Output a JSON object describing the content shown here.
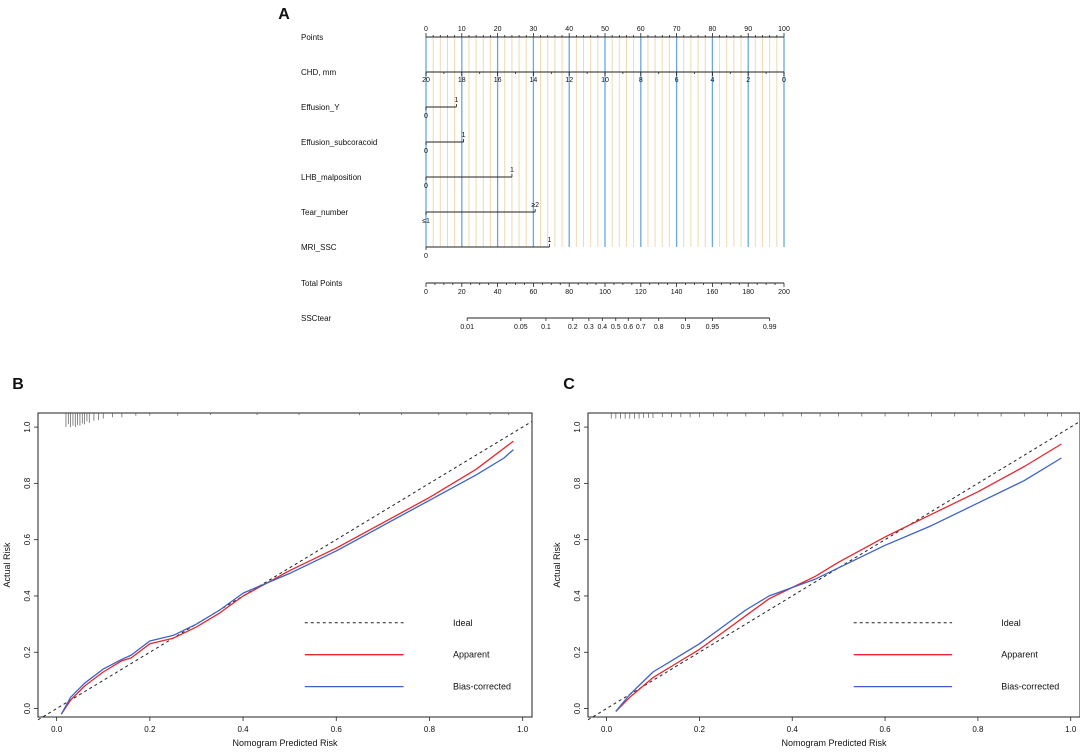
{
  "panels": {
    "a": "A",
    "b": "B",
    "c": "C"
  },
  "colors": {
    "major_grid": "#6aa8d8",
    "minor_grid": "#eed9b5",
    "apparent": "#e8262c",
    "bias": "#3d62c8",
    "axis": "#222222"
  },
  "chart_data": [
    {
      "type": "nomogram",
      "title": "A",
      "points_scale": {
        "label": "Points",
        "min": 0,
        "max": 100,
        "ticks": [
          0,
          10,
          20,
          30,
          40,
          50,
          60,
          70,
          80,
          90,
          100
        ]
      },
      "variables": [
        {
          "label": "CHD, mm",
          "points_at_max": 100,
          "value_ticks": [
            {
              "label": "20",
              "points": 0
            },
            {
              "label": "18",
              "points": 10
            },
            {
              "label": "16",
              "points": 20
            },
            {
              "label": "14",
              "points": 30
            },
            {
              "label": "12",
              "points": 40
            },
            {
              "label": "10",
              "points": 50
            },
            {
              "label": "8",
              "points": 60
            },
            {
              "label": "6",
              "points": 70
            },
            {
              "label": "4",
              "points": 80
            },
            {
              "label": "2",
              "points": 90
            },
            {
              "label": "0",
              "points": 100
            }
          ]
        },
        {
          "label": "Effusion_Y",
          "points_at_max": 8.5,
          "low": "0",
          "high": "1"
        },
        {
          "label": "Effusion_subcoracoid",
          "points_at_max": 10.5,
          "low": "0",
          "high": "1"
        },
        {
          "label": "LHB_malposition",
          "points_at_max": 24,
          "low": "0",
          "high": "1"
        },
        {
          "label": "Tear_number",
          "points_at_max": 30.5,
          "low": "≤1",
          "high": "≥2"
        },
        {
          "label": "MRI_SSC",
          "points_at_max": 34.5,
          "low": "0",
          "high": "1"
        }
      ],
      "total_points": {
        "label": "Total Points",
        "min": 0,
        "max": 200,
        "ticks": [
          0,
          20,
          40,
          60,
          80,
          100,
          120,
          140,
          160,
          180,
          200
        ]
      },
      "probability": {
        "label": "SSCtear",
        "ticks": [
          {
            "label": "0.01",
            "total": 23
          },
          {
            "label": "0.05",
            "total": 53
          },
          {
            "label": "0.1",
            "total": 67
          },
          {
            "label": "0.2",
            "total": 82
          },
          {
            "label": "0.3",
            "total": 91
          },
          {
            "label": "0.4",
            "total": 98.5
          },
          {
            "label": "0.5",
            "total": 106
          },
          {
            "label": "0.6",
            "total": 113
          },
          {
            "label": "0.7",
            "total": 120
          },
          {
            "label": "0.8",
            "total": 130
          },
          {
            "label": "0.9",
            "total": 145
          },
          {
            "label": "0.95",
            "total": 160
          },
          {
            "label": "0.99",
            "total": 192
          }
        ]
      }
    },
    {
      "type": "line",
      "title": "B",
      "xlabel": "Nomogram Predicted Risk",
      "ylabel": "Actual Risk",
      "xlim": [
        -0.04,
        1.02
      ],
      "ylim": [
        -0.03,
        1.05
      ],
      "xticks": [
        "0.0",
        "0.2",
        "0.4",
        "0.6",
        "0.8",
        "1.0"
      ],
      "yticks": [
        "0.0",
        "0.2",
        "0.4",
        "0.6",
        "0.8",
        "1.0"
      ],
      "legend": [
        "Ideal",
        "Apparent",
        "Bias-corrected"
      ],
      "series": [
        {
          "name": "Ideal",
          "style": "dashed",
          "x": [
            -0.04,
            1.02
          ],
          "y": [
            -0.04,
            1.02
          ]
        },
        {
          "name": "Apparent",
          "x": [
            0.01,
            0.03,
            0.06,
            0.1,
            0.14,
            0.16,
            0.2,
            0.25,
            0.3,
            0.35,
            0.4,
            0.5,
            0.6,
            0.7,
            0.8,
            0.9,
            0.98
          ],
          "y": [
            -0.02,
            0.03,
            0.08,
            0.13,
            0.17,
            0.18,
            0.23,
            0.25,
            0.29,
            0.34,
            0.4,
            0.49,
            0.57,
            0.66,
            0.75,
            0.85,
            0.95
          ]
        },
        {
          "name": "Bias-corrected",
          "x": [
            0.01,
            0.03,
            0.06,
            0.1,
            0.14,
            0.16,
            0.2,
            0.25,
            0.3,
            0.35,
            0.4,
            0.5,
            0.6,
            0.7,
            0.8,
            0.9,
            0.96,
            0.98
          ],
          "y": [
            -0.02,
            0.04,
            0.09,
            0.14,
            0.175,
            0.19,
            0.24,
            0.26,
            0.3,
            0.35,
            0.41,
            0.48,
            0.56,
            0.65,
            0.74,
            0.83,
            0.89,
            0.92
          ]
        }
      ],
      "rug": {
        "position": "top",
        "x": [
          0.02,
          0.025,
          0.03,
          0.035,
          0.04,
          0.045,
          0.05,
          0.055,
          0.06,
          0.065,
          0.07,
          0.08,
          0.09,
          0.1,
          0.12,
          0.14,
          0.17,
          0.2,
          0.26,
          0.33,
          0.43,
          0.52,
          0.65,
          0.74,
          0.82,
          0.88,
          0.93,
          0.97
        ],
        "h": [
          1,
          0.8,
          1,
          0.9,
          1,
          0.85,
          0.9,
          0.75,
          0.8,
          0.6,
          0.7,
          0.55,
          0.5,
          0.4,
          0.3,
          0.3,
          0.2,
          0.2,
          0.2,
          0.15,
          0.15,
          0.15,
          0.15,
          0.15,
          0.15,
          0.15,
          0.15,
          0.15
        ]
      }
    },
    {
      "type": "line",
      "title": "C",
      "xlabel": "Nomogram Predicted Risk",
      "ylabel": "Actual Risk",
      "xlim": [
        -0.04,
        1.02
      ],
      "ylim": [
        -0.03,
        1.05
      ],
      "xticks": [
        "0.0",
        "0.2",
        "0.4",
        "0.6",
        "0.8",
        "1.0"
      ],
      "yticks": [
        "0.0",
        "0.2",
        "0.4",
        "0.6",
        "0.8",
        "1.0"
      ],
      "legend": [
        "Ideal",
        "Apparent",
        "Bias-corrected"
      ],
      "series": [
        {
          "name": "Ideal",
          "style": "dashed",
          "x": [
            -0.04,
            1.02
          ],
          "y": [
            -0.04,
            1.02
          ]
        },
        {
          "name": "Apparent",
          "x": [
            0.02,
            0.05,
            0.1,
            0.15,
            0.2,
            0.25,
            0.3,
            0.35,
            0.4,
            0.45,
            0.5,
            0.6,
            0.7,
            0.8,
            0.9,
            0.98
          ],
          "y": [
            -0.01,
            0.04,
            0.11,
            0.16,
            0.21,
            0.27,
            0.33,
            0.39,
            0.43,
            0.47,
            0.52,
            0.61,
            0.69,
            0.77,
            0.86,
            0.94
          ]
        },
        {
          "name": "Bias-corrected",
          "x": [
            0.02,
            0.05,
            0.1,
            0.15,
            0.2,
            0.25,
            0.3,
            0.35,
            0.4,
            0.45,
            0.5,
            0.6,
            0.7,
            0.8,
            0.9,
            0.98
          ],
          "y": [
            -0.01,
            0.05,
            0.13,
            0.18,
            0.23,
            0.29,
            0.35,
            0.4,
            0.43,
            0.46,
            0.5,
            0.58,
            0.65,
            0.73,
            0.81,
            0.89
          ]
        }
      ],
      "rug": {
        "position": "top",
        "x": [
          0.01,
          0.02,
          0.03,
          0.04,
          0.05,
          0.06,
          0.07,
          0.08,
          0.09,
          0.1,
          0.12,
          0.14,
          0.16,
          0.18,
          0.2,
          0.23,
          0.26,
          0.3,
          0.34,
          0.38,
          0.42,
          0.46,
          0.5,
          0.55,
          0.6,
          0.65,
          0.7,
          0.75,
          0.8,
          0.85,
          0.9,
          0.95,
          0.98
        ],
        "h": [
          0.4,
          0.4,
          0.4,
          0.4,
          0.4,
          0.4,
          0.4,
          0.35,
          0.35,
          0.35,
          0.3,
          0.3,
          0.3,
          0.3,
          0.3,
          0.25,
          0.25,
          0.25,
          0.25,
          0.25,
          0.25,
          0.25,
          0.25,
          0.25,
          0.25,
          0.25,
          0.25,
          0.25,
          0.25,
          0.25,
          0.25,
          0.25,
          0.25
        ]
      }
    }
  ]
}
